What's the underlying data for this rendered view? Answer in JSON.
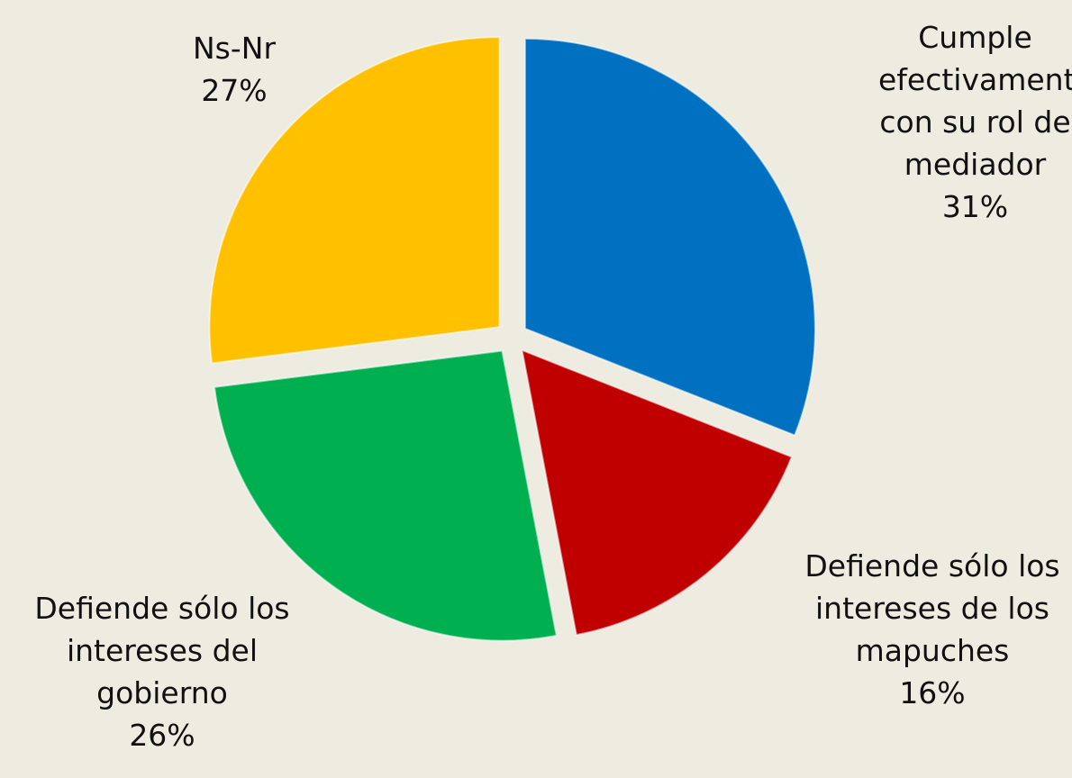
{
  "chart_data": {
    "type": "pie",
    "categories": [
      "Cumple efectivamente con su rol de mediador",
      "Defiende sólo los intereses de los mapuches",
      "Defiende sólo los intereses del gobierno",
      "Ns-Nr"
    ],
    "values": [
      31,
      16,
      26,
      27
    ],
    "value_labels": [
      "31%",
      "16%",
      "26%",
      "27%"
    ],
    "colors": [
      "#0070c0",
      "#c00000",
      "#00b050",
      "#ffc000"
    ]
  }
}
